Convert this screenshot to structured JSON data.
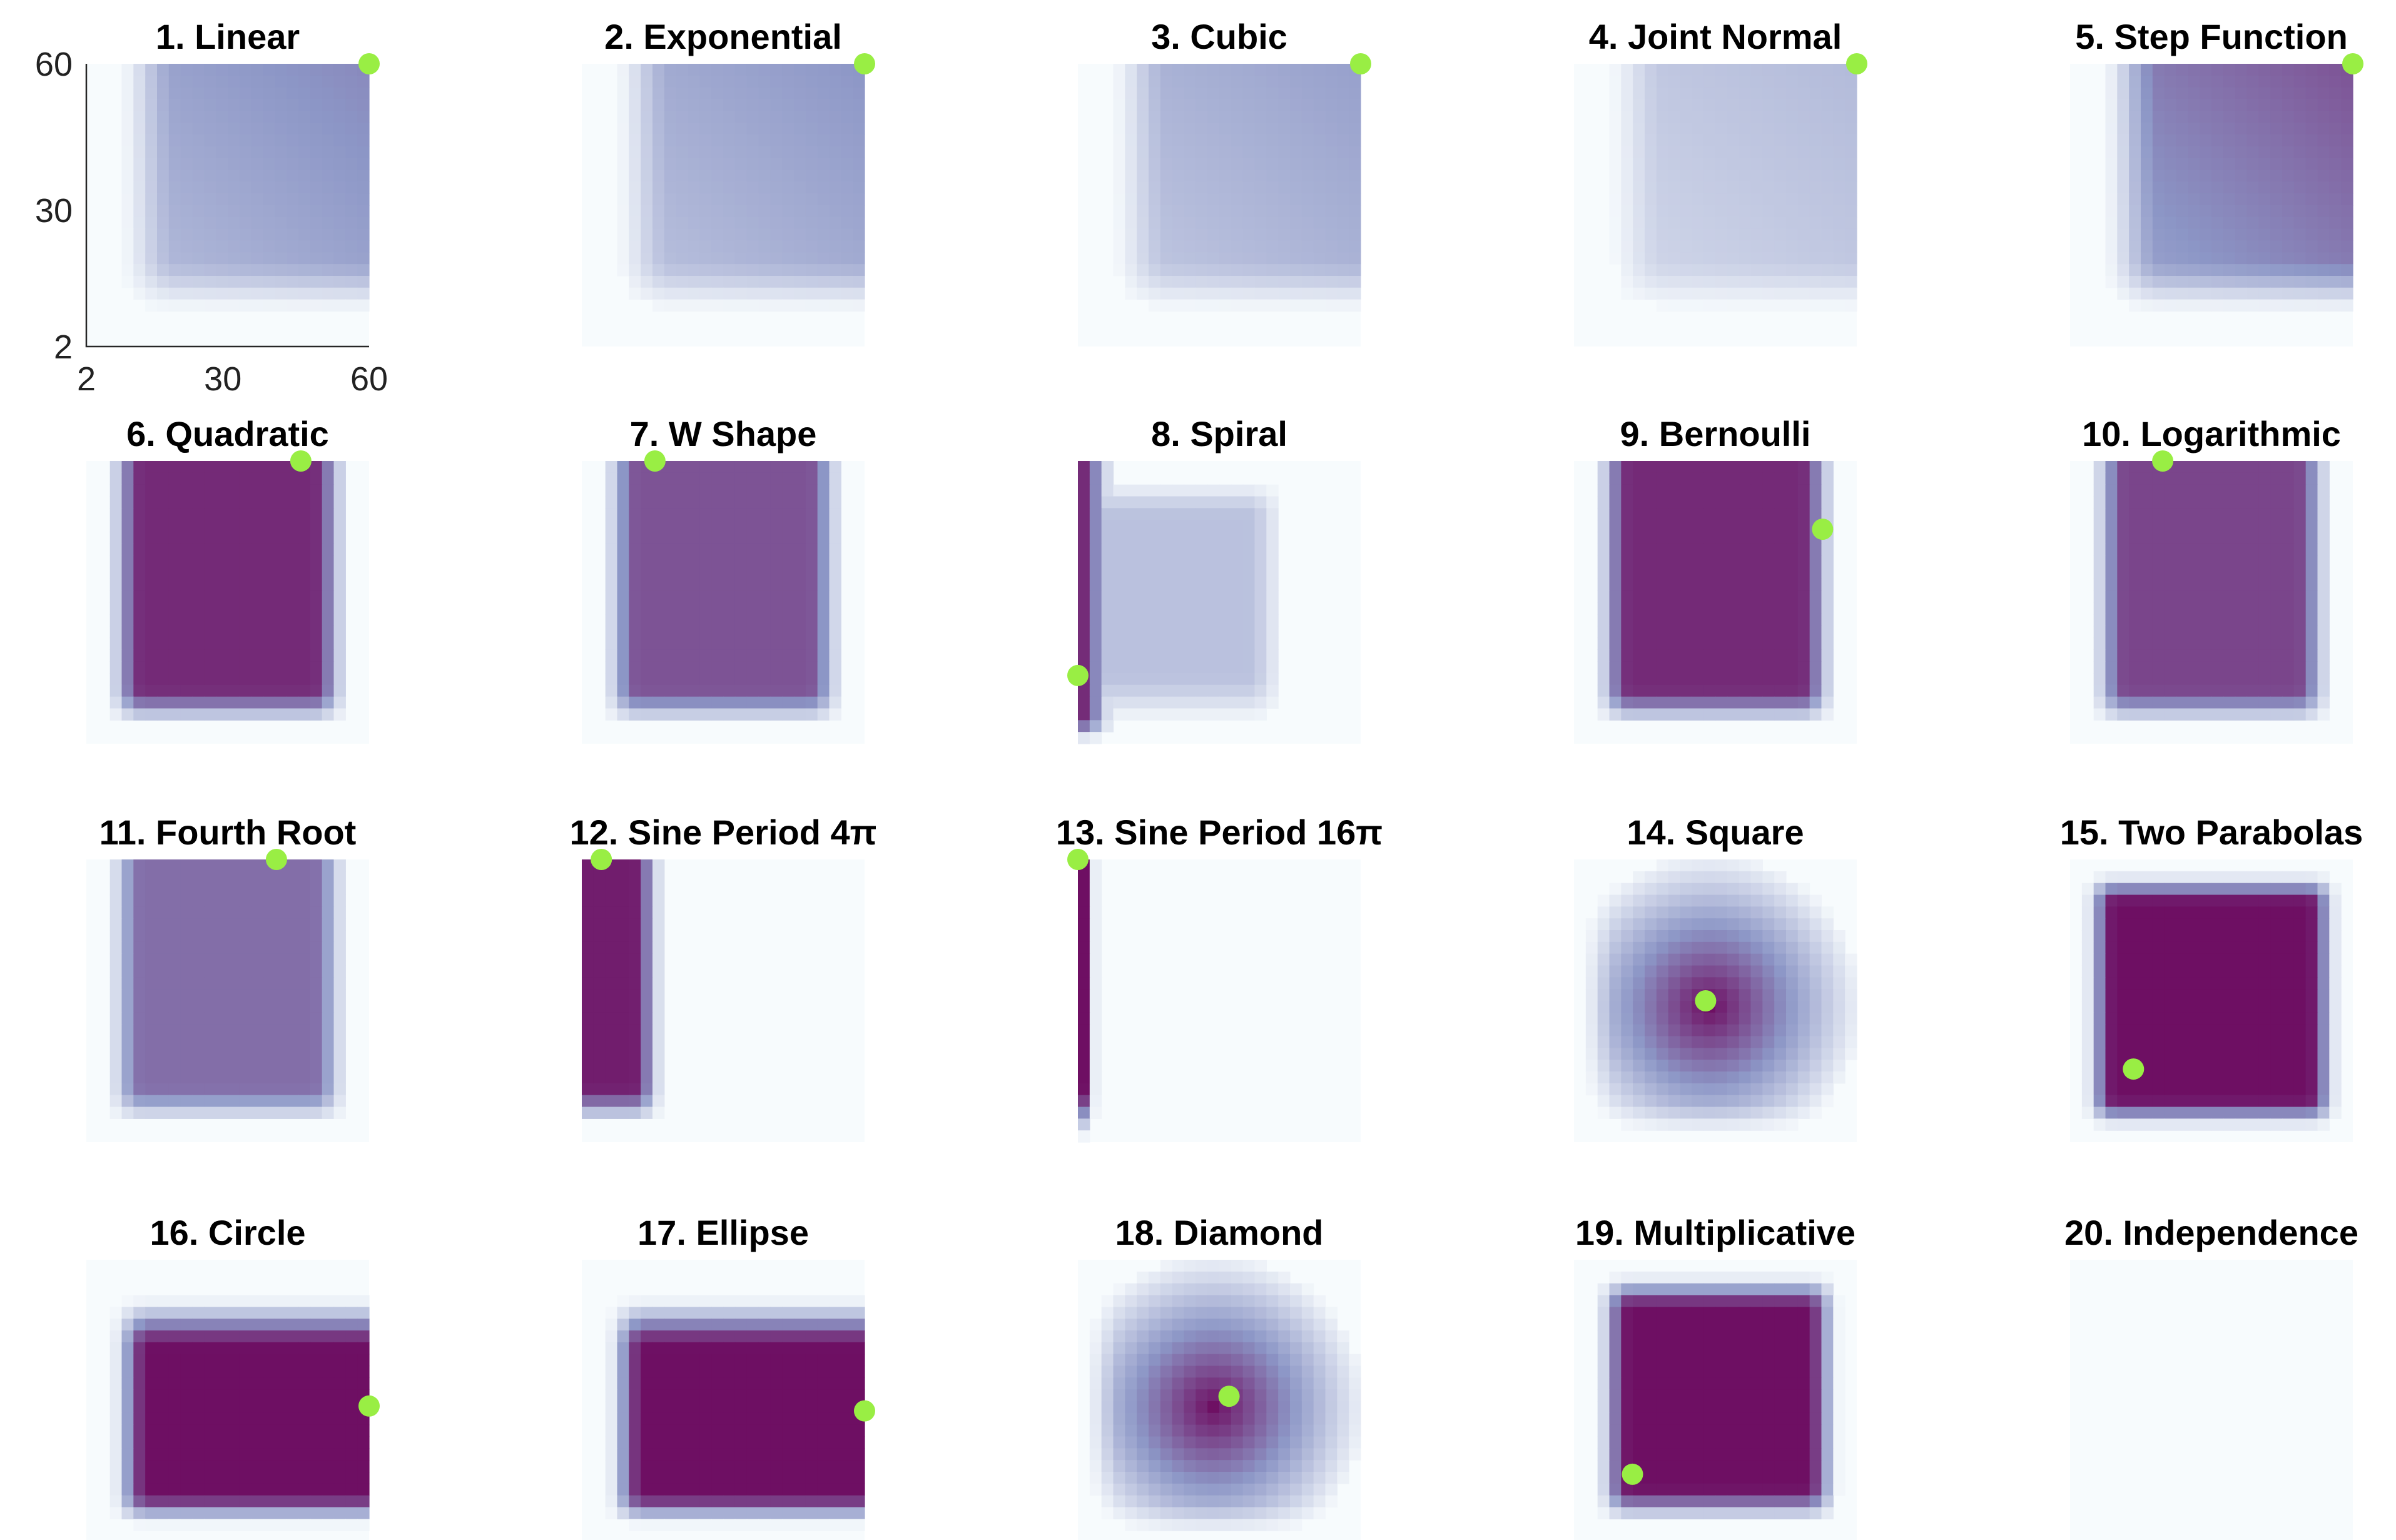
{
  "chart_data": {
    "type": "heatmap",
    "colormap": {
      "low": "#f7fbfd",
      "mid": "#8c96c6",
      "high": "#6e0f63"
    },
    "marker_color": "#99ee44",
    "x_ticks": [
      "2",
      "30",
      "60"
    ],
    "y_ticks": [
      "2",
      "30",
      "60"
    ],
    "xlim": [
      2,
      60
    ],
    "ylim": [
      2,
      60
    ],
    "grid": false,
    "panels": [
      {
        "title": "1. Linear",
        "optimum": [
          60,
          60
        ],
        "max_intensity": 0.55,
        "shape": "corner"
      },
      {
        "title": "2. Exponential",
        "optimum": [
          60,
          60
        ],
        "max_intensity": 0.5,
        "shape": "corner"
      },
      {
        "title": "3. Cubic",
        "optimum": [
          60,
          60
        ],
        "max_intensity": 0.45,
        "shape": "corner"
      },
      {
        "title": "4. Joint Normal",
        "optimum": [
          60,
          60
        ],
        "max_intensity": 0.32,
        "shape": "corner"
      },
      {
        "title": "5. Step Function",
        "optimum": [
          60,
          60
        ],
        "max_intensity": 0.75,
        "shape": "corner"
      },
      {
        "title": "6. Quadratic",
        "optimum": [
          46,
          60
        ],
        "max_intensity": 0.9,
        "shape": "block"
      },
      {
        "title": "7. W Shape",
        "optimum": [
          17,
          60
        ],
        "max_intensity": 0.75,
        "shape": "block"
      },
      {
        "title": "8. Spiral",
        "optimum": [
          2,
          16
        ],
        "max_intensity": 0.95,
        "shape": "leftstrip"
      },
      {
        "title": "9. Bernoulli",
        "optimum": [
          53,
          46
        ],
        "max_intensity": 0.9,
        "shape": "block"
      },
      {
        "title": "10. Logarithmic",
        "optimum": [
          21,
          60
        ],
        "max_intensity": 0.8,
        "shape": "block"
      },
      {
        "title": "11. Fourth Root",
        "optimum": [
          41,
          60
        ],
        "max_intensity": 0.65,
        "shape": "block"
      },
      {
        "title": "12. Sine Period 4π",
        "optimum": [
          6,
          60
        ],
        "max_intensity": 0.95,
        "shape": "thinstrip"
      },
      {
        "title": "13. Sine Period 16π",
        "optimum": [
          2,
          60
        ],
        "max_intensity": 1.0,
        "shape": "line"
      },
      {
        "title": "14. Square",
        "optimum": [
          29,
          31
        ],
        "max_intensity": 1.0,
        "shape": "spot"
      },
      {
        "title": "15. Two Parabolas",
        "optimum": [
          15,
          17
        ],
        "max_intensity": 1.0,
        "shape": "grid"
      },
      {
        "title": "16. Circle",
        "optimum": [
          60,
          30
        ],
        "max_intensity": 1.0,
        "shape": "lowerblock"
      },
      {
        "title": "17. Ellipse",
        "optimum": [
          60,
          29
        ],
        "max_intensity": 1.0,
        "shape": "lowerblock"
      },
      {
        "title": "18. Diamond",
        "optimum": [
          33,
          32
        ],
        "max_intensity": 1.0,
        "shape": "spot"
      },
      {
        "title": "19. Multiplicative",
        "optimum": [
          14,
          16
        ],
        "max_intensity": 1.0,
        "shape": "diag"
      },
      {
        "title": "20. Independence",
        "optimum": null,
        "max_intensity": 0.0,
        "shape": "empty"
      }
    ]
  }
}
